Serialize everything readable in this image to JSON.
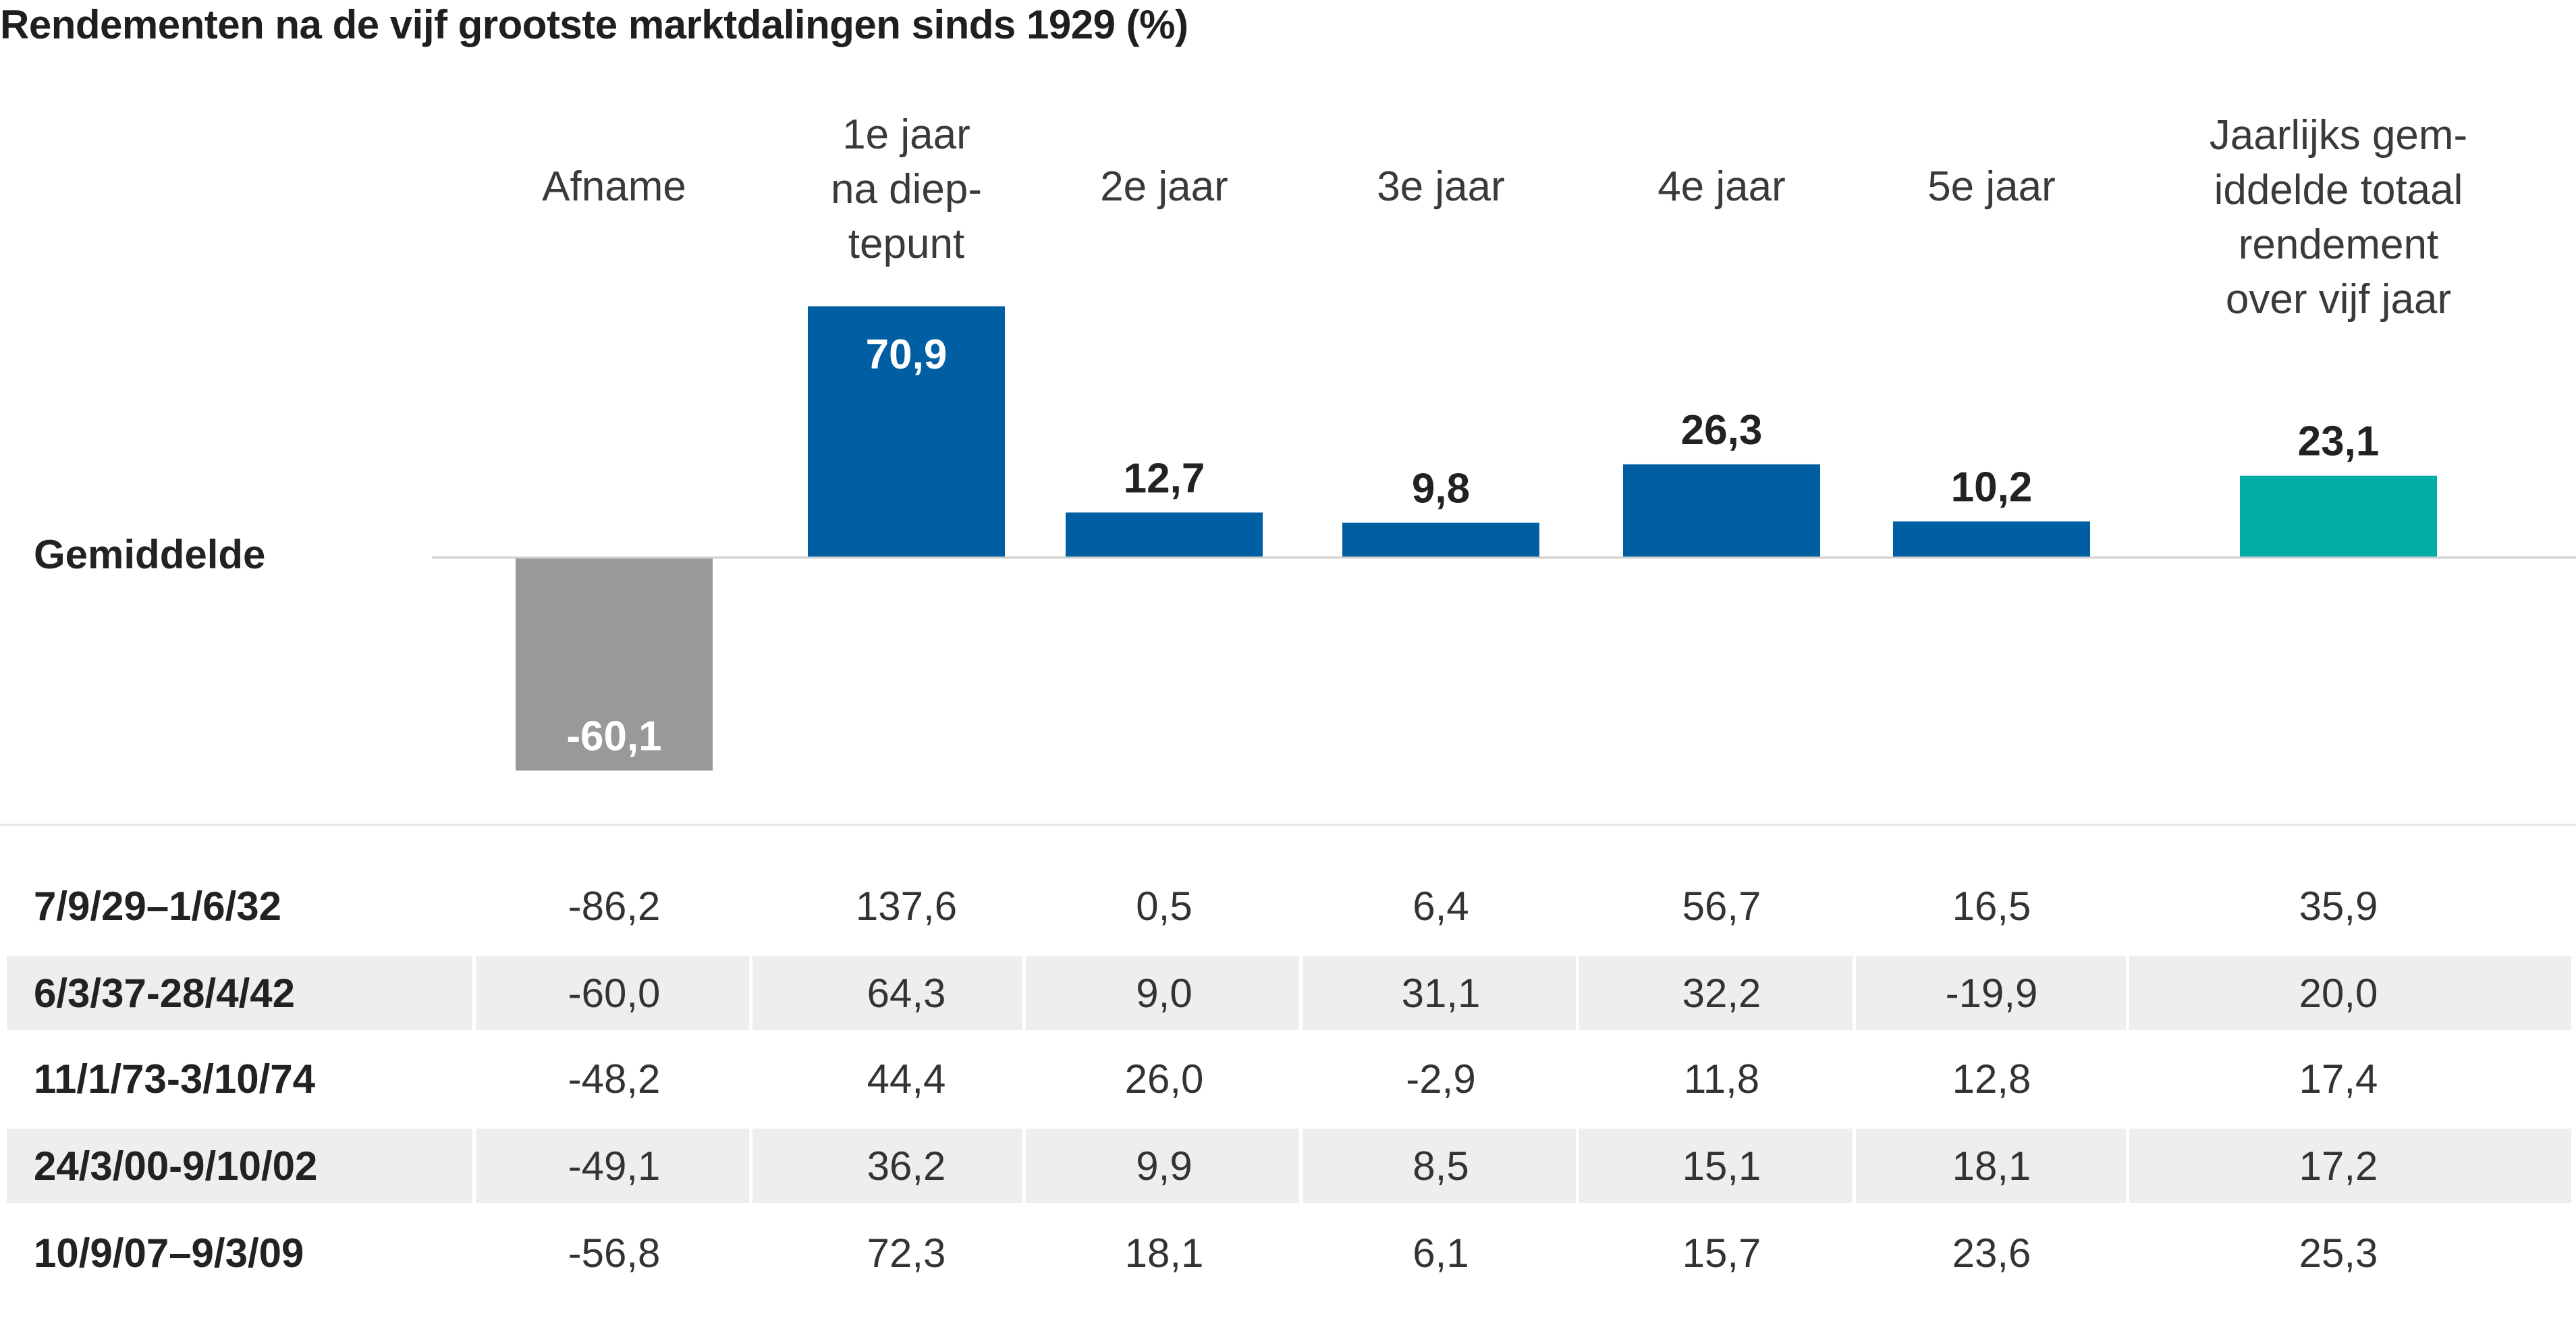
{
  "title": "Rendementen na de vijf grootste marktdalingen sinds 1929 (%)",
  "chart_data": {
    "type": "bar",
    "categories": [
      "Afname",
      "1e jaar na dieptepunt",
      "2e jaar",
      "3e jaar",
      "4e jaar",
      "5e jaar",
      "Jaarlijks gemiddelde totaal rendement over vijf jaar"
    ],
    "header_lines": [
      [
        "Afname"
      ],
      [
        "1e jaar",
        "na diep-",
        "tepunt"
      ],
      [
        "2e jaar"
      ],
      [
        "3e jaar"
      ],
      [
        "4e jaar"
      ],
      [
        "5e jaar"
      ],
      [
        "Jaarlijks gem-",
        "iddelde totaal",
        "rendement",
        "over vijf jaar"
      ]
    ],
    "average_label": "Gemiddelde",
    "values": [
      -60.1,
      70.9,
      12.7,
      9.8,
      26.3,
      10.2,
      23.1
    ],
    "value_labels": [
      "-60,1",
      "70,9",
      "12,7",
      "9,8",
      "26,3",
      "10,2",
      "23,1"
    ],
    "colors": {
      "decline": "#999999",
      "yearly": "#005fa3",
      "average": "#00aea7",
      "row_stripe": "#efeeed",
      "text_dark": "#222222"
    },
    "table": {
      "rows": [
        {
          "period": "7/9/29–1/6/32",
          "values": [
            "-86,2",
            "137,6",
            "0,5",
            "6,4",
            "56,7",
            "16,5",
            "35,9"
          ]
        },
        {
          "period": "6/3/37-28/4/42",
          "values": [
            "-60,0",
            "64,3",
            "9,0",
            "31,1",
            "32,2",
            "-19,9",
            "20,0"
          ]
        },
        {
          "period": "11/1/73-3/10/74",
          "values": [
            "-48,2",
            "44,4",
            "26,0",
            "-2,9",
            "11,8",
            "12,8",
            "17,4"
          ]
        },
        {
          "period": "24/3/00-9/10/02",
          "values": [
            "-49,1",
            "36,2",
            "9,9",
            "8,5",
            "15,1",
            "18,1",
            "17,2"
          ]
        },
        {
          "period": "10/9/07–9/3/09",
          "values": [
            "-56,8",
            "72,3",
            "18,1",
            "6,1",
            "15,7",
            "23,6",
            "25,3"
          ]
        }
      ]
    }
  }
}
